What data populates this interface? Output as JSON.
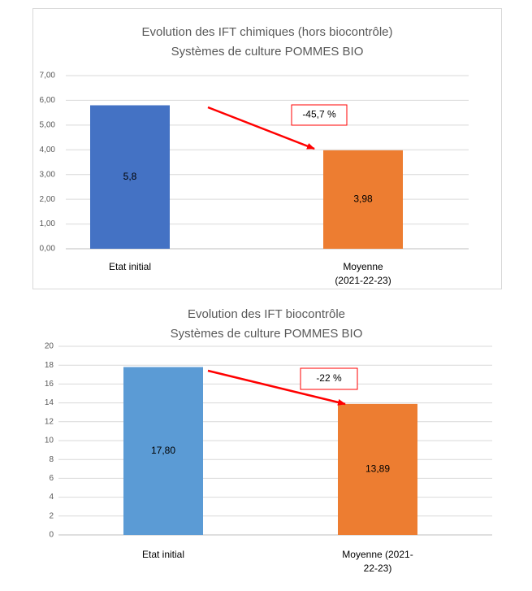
{
  "chart_data": [
    {
      "type": "bar",
      "title_lines": [
        "Evolution des IFT chimiques (hors biocontrôle)",
        "Systèmes de culture POMMES BIO"
      ],
      "categories": [
        [
          "Etat initial"
        ],
        [
          "Moyenne",
          "(2021-22-23)"
        ]
      ],
      "values": [
        5.8,
        3.98
      ],
      "value_labels": [
        "5,8",
        "3,98"
      ],
      "bar_colors": [
        "#4472c4",
        "#ed7d31"
      ],
      "ylim": [
        0,
        7
      ],
      "yticks": [
        0,
        1,
        2,
        3,
        4,
        5,
        6,
        7
      ],
      "ytick_labels": [
        "0,00",
        "1,00",
        "2,00",
        "3,00",
        "4,00",
        "5,00",
        "6,00",
        "7,00"
      ],
      "annotation": {
        "text": "-45,7 %",
        "arrow_color": "#ff0000",
        "border_color": "#ff0000"
      },
      "grid": true,
      "legend": "none"
    },
    {
      "type": "bar",
      "title_lines": [
        "Evolution des IFT biocontrôle",
        "Systèmes de culture POMMES BIO"
      ],
      "categories": [
        [
          "Etat initial"
        ],
        [
          "Moyenne (2021-",
          "22-23)"
        ]
      ],
      "values": [
        17.8,
        13.89
      ],
      "value_labels": [
        "17,80",
        "13,89"
      ],
      "bar_colors": [
        "#5b9bd5",
        "#ed7d31"
      ],
      "ylim": [
        0,
        20
      ],
      "yticks": [
        0,
        2,
        4,
        6,
        8,
        10,
        12,
        14,
        16,
        18,
        20
      ],
      "ytick_labels": [
        "0",
        "2",
        "4",
        "6",
        "8",
        "10",
        "12",
        "14",
        "16",
        "18",
        "20"
      ],
      "annotation": {
        "text": "-22 %",
        "arrow_color": "#ff0000",
        "border_color": "#ff0000"
      },
      "grid": true,
      "legend": "none"
    }
  ]
}
